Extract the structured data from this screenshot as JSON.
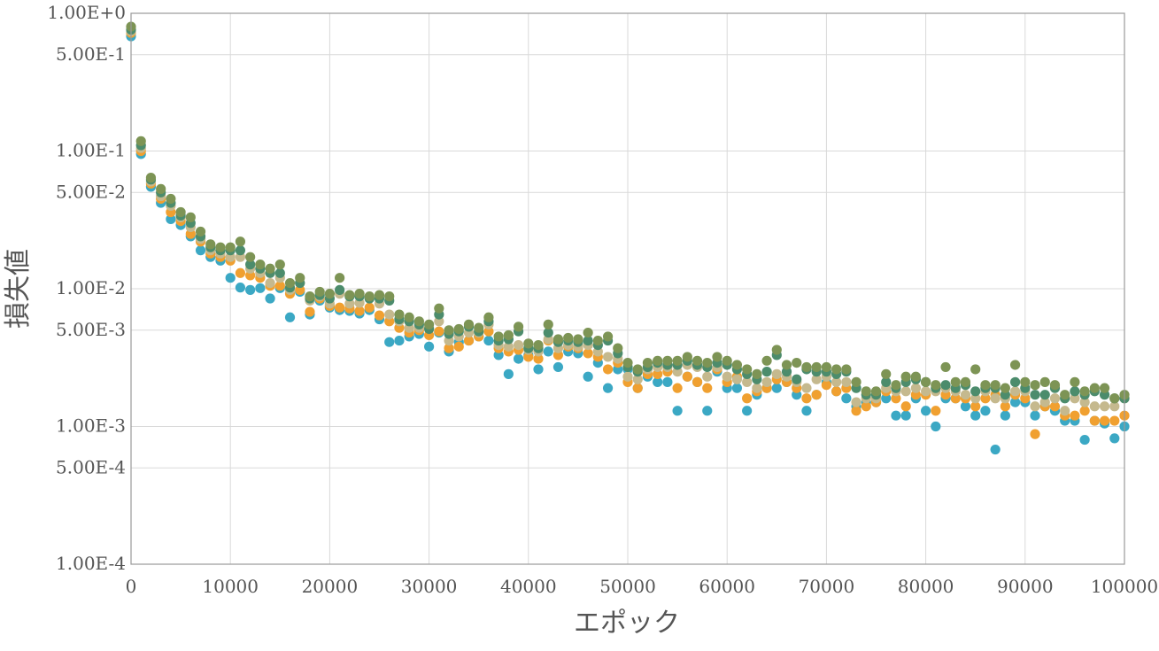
{
  "chart_data": {
    "type": "scatter",
    "title": "",
    "xlabel": "エポック",
    "ylabel": "損失値",
    "xlim": [
      0,
      100000
    ],
    "ylim": [
      0.0001,
      1.0
    ],
    "y_scale": "log",
    "grid": true,
    "legend": "none",
    "x_ticks": [
      {
        "value": 0,
        "label": "0"
      },
      {
        "value": 10000,
        "label": "10000"
      },
      {
        "value": 20000,
        "label": "20000"
      },
      {
        "value": 30000,
        "label": "30000"
      },
      {
        "value": 40000,
        "label": "40000"
      },
      {
        "value": 50000,
        "label": "50000"
      },
      {
        "value": 60000,
        "label": "60000"
      },
      {
        "value": 70000,
        "label": "70000"
      },
      {
        "value": 80000,
        "label": "80000"
      },
      {
        "value": 90000,
        "label": "90000"
      },
      {
        "value": 100000,
        "label": "100000"
      }
    ],
    "y_ticks": [
      {
        "value": 1.0,
        "label": "1.00E+0"
      },
      {
        "value": 0.5,
        "label": "5.00E-1"
      },
      {
        "value": 0.1,
        "label": "1.00E-1"
      },
      {
        "value": 0.05,
        "label": "5.00E-2"
      },
      {
        "value": 0.01,
        "label": "1.00E-2"
      },
      {
        "value": 0.005,
        "label": "5.00E-3"
      },
      {
        "value": 0.001,
        "label": "1.00E-3"
      },
      {
        "value": 0.0005,
        "label": "5.00E-4"
      },
      {
        "value": 0.0001,
        "label": "1.00E-4"
      }
    ],
    "series": [
      {
        "color": "#3ba8c4",
        "x": [
          0,
          1000,
          2000,
          3000,
          4000,
          5000,
          6000,
          7000,
          8000,
          9000,
          10000,
          11000,
          12000,
          13000,
          14000,
          15000,
          16000,
          17000,
          18000,
          19000,
          20000,
          21000,
          22000,
          23000,
          24000,
          25000,
          26000,
          27000,
          28000,
          29000,
          30000,
          31000,
          32000,
          33000,
          34000,
          35000,
          36000,
          37000,
          38000,
          39000,
          40000,
          41000,
          42000,
          43000,
          44000,
          45000,
          46000,
          47000,
          48000,
          49000,
          50000,
          51000,
          52000,
          53000,
          54000,
          55000,
          56000,
          57000,
          58000,
          59000,
          60000,
          61000,
          62000,
          63000,
          64000,
          65000,
          66000,
          67000,
          68000,
          69000,
          70000,
          71000,
          72000,
          73000,
          74000,
          75000,
          76000,
          77000,
          78000,
          79000,
          80000,
          81000,
          82000,
          83000,
          84000,
          85000,
          86000,
          87000,
          88000,
          89000,
          90000,
          91000,
          92000,
          93000,
          94000,
          95000,
          96000,
          97000,
          98000,
          99000,
          100000
        ],
        "values": [
          0.68,
          0.095,
          0.055,
          0.042,
          0.032,
          0.029,
          0.024,
          0.019,
          0.017,
          0.016,
          0.012,
          0.0102,
          0.0098,
          0.0101,
          0.0085,
          0.0101,
          0.0062,
          0.0095,
          0.0065,
          0.0082,
          0.0073,
          0.007,
          0.0069,
          0.0066,
          0.007,
          0.006,
          0.0041,
          0.0042,
          0.0045,
          0.0047,
          0.0038,
          0.0048,
          0.0035,
          0.0041,
          0.0042,
          0.0045,
          0.0042,
          0.0033,
          0.0024,
          0.0031,
          0.0033,
          0.0026,
          0.0035,
          0.0027,
          0.0035,
          0.0034,
          0.0023,
          0.0029,
          0.0019,
          0.0026,
          0.0026,
          0.0019,
          0.0023,
          0.0021,
          0.0021,
          0.0013,
          0.0023,
          0.0021,
          0.0013,
          0.0025,
          0.0019,
          0.0019,
          0.0013,
          0.0017,
          0.0019,
          0.0019,
          0.0021,
          0.0017,
          0.0013,
          0.0017,
          0.0021,
          0.0018,
          0.0016,
          0.0014,
          0.0015,
          0.0015,
          0.0016,
          0.0012,
          0.0012,
          0.0016,
          0.0013,
          0.001,
          0.0016,
          0.0016,
          0.0014,
          0.0012,
          0.0013,
          0.00068,
          0.0012,
          0.0015,
          0.0015,
          0.0012,
          0.0014,
          0.0013,
          0.0011,
          0.0011,
          0.0008,
          0.0011,
          0.00105,
          0.00082,
          0.001
        ]
      },
      {
        "color": "#f0a030",
        "x": [
          0,
          1000,
          2000,
          3000,
          4000,
          5000,
          6000,
          7000,
          8000,
          9000,
          10000,
          11000,
          12000,
          13000,
          14000,
          15000,
          16000,
          17000,
          18000,
          19000,
          20000,
          21000,
          22000,
          23000,
          24000,
          25000,
          26000,
          27000,
          28000,
          29000,
          30000,
          31000,
          32000,
          33000,
          34000,
          35000,
          36000,
          37000,
          38000,
          39000,
          40000,
          41000,
          42000,
          43000,
          44000,
          45000,
          46000,
          47000,
          48000,
          49000,
          50000,
          51000,
          52000,
          53000,
          54000,
          55000,
          56000,
          57000,
          58000,
          59000,
          60000,
          61000,
          62000,
          63000,
          64000,
          65000,
          66000,
          67000,
          68000,
          69000,
          70000,
          71000,
          72000,
          73000,
          74000,
          75000,
          76000,
          77000,
          78000,
          79000,
          80000,
          81000,
          82000,
          83000,
          84000,
          85000,
          86000,
          87000,
          88000,
          89000,
          90000,
          91000,
          92000,
          93000,
          94000,
          95000,
          96000,
          97000,
          98000,
          99000,
          100000
        ],
        "values": [
          0.72,
          0.1,
          0.058,
          0.045,
          0.036,
          0.031,
          0.025,
          0.022,
          0.018,
          0.017,
          0.016,
          0.013,
          0.0125,
          0.012,
          0.0105,
          0.0105,
          0.0092,
          0.0098,
          0.0068,
          0.0085,
          0.0075,
          0.0073,
          0.0072,
          0.0069,
          0.0073,
          0.0064,
          0.0058,
          0.0052,
          0.0048,
          0.005,
          0.0046,
          0.0049,
          0.0037,
          0.0038,
          0.0042,
          0.0045,
          0.0049,
          0.0037,
          0.0035,
          0.0036,
          0.0032,
          0.0031,
          0.0042,
          0.0033,
          0.0038,
          0.0037,
          0.0034,
          0.0032,
          0.0026,
          0.0029,
          0.0021,
          0.0019,
          0.0024,
          0.0024,
          0.0025,
          0.0019,
          0.0023,
          0.0021,
          0.0019,
          0.0026,
          0.0021,
          0.0023,
          0.0016,
          0.0018,
          0.0019,
          0.0022,
          0.0021,
          0.0019,
          0.0016,
          0.0017,
          0.002,
          0.0018,
          0.0019,
          0.0013,
          0.0014,
          0.0015,
          0.0018,
          0.0016,
          0.0014,
          0.0017,
          0.0017,
          0.0013,
          0.0017,
          0.0016,
          0.0016,
          0.0014,
          0.0016,
          0.0017,
          0.0014,
          0.0017,
          0.0016,
          0.00088,
          0.0014,
          0.0014,
          0.0012,
          0.0012,
          0.0013,
          0.0011,
          0.0011,
          0.0011,
          0.0012
        ]
      },
      {
        "color": "#c5b98e",
        "x": [
          0,
          1000,
          2000,
          3000,
          4000,
          5000,
          6000,
          7000,
          8000,
          9000,
          10000,
          11000,
          12000,
          13000,
          14000,
          15000,
          16000,
          17000,
          18000,
          19000,
          20000,
          21000,
          22000,
          23000,
          24000,
          25000,
          26000,
          27000,
          28000,
          29000,
          30000,
          31000,
          32000,
          33000,
          34000,
          35000,
          36000,
          37000,
          38000,
          39000,
          40000,
          41000,
          42000,
          43000,
          44000,
          45000,
          46000,
          47000,
          48000,
          49000,
          50000,
          51000,
          52000,
          53000,
          54000,
          55000,
          56000,
          57000,
          58000,
          59000,
          60000,
          61000,
          62000,
          63000,
          64000,
          65000,
          66000,
          67000,
          68000,
          69000,
          70000,
          71000,
          72000,
          73000,
          74000,
          75000,
          76000,
          77000,
          78000,
          79000,
          80000,
          81000,
          82000,
          83000,
          84000,
          85000,
          86000,
          87000,
          88000,
          89000,
          90000,
          91000,
          92000,
          93000,
          94000,
          95000,
          96000,
          97000,
          98000,
          99000,
          100000
        ],
        "values": [
          0.74,
          0.105,
          0.06,
          0.047,
          0.04,
          0.033,
          0.028,
          0.023,
          0.019,
          0.018,
          0.017,
          0.017,
          0.014,
          0.013,
          0.011,
          0.012,
          0.0098,
          0.011,
          0.0082,
          0.0088,
          0.0078,
          0.0092,
          0.0078,
          0.0079,
          0.0085,
          0.0078,
          0.0065,
          0.0058,
          0.0052,
          0.0052,
          0.0052,
          0.0058,
          0.0042,
          0.0045,
          0.0048,
          0.0048,
          0.0055,
          0.0039,
          0.0038,
          0.0039,
          0.0036,
          0.0035,
          0.0043,
          0.0037,
          0.0039,
          0.0038,
          0.0039,
          0.0035,
          0.0032,
          0.0031,
          0.0023,
          0.0022,
          0.0026,
          0.0027,
          0.0027,
          0.0025,
          0.0028,
          0.0027,
          0.0023,
          0.0027,
          0.0023,
          0.0022,
          0.0021,
          0.0019,
          0.0021,
          0.0024,
          0.0023,
          0.0021,
          0.0019,
          0.0022,
          0.0023,
          0.0021,
          0.0021,
          0.0015,
          0.0016,
          0.0016,
          0.0019,
          0.0018,
          0.0018,
          0.0019,
          0.0018,
          0.0018,
          0.0019,
          0.0018,
          0.0017,
          0.0016,
          0.0018,
          0.0016,
          0.0016,
          0.0018,
          0.0018,
          0.0014,
          0.0015,
          0.0016,
          0.0013,
          0.0016,
          0.0015,
          0.0014,
          0.0014,
          0.0014,
          0.0016
        ]
      },
      {
        "color": "#4c8c6c",
        "x": [
          0,
          1000,
          2000,
          3000,
          4000,
          5000,
          6000,
          7000,
          8000,
          9000,
          10000,
          11000,
          12000,
          13000,
          14000,
          15000,
          16000,
          17000,
          18000,
          19000,
          20000,
          21000,
          22000,
          23000,
          24000,
          25000,
          26000,
          27000,
          28000,
          29000,
          30000,
          31000,
          32000,
          33000,
          34000,
          35000,
          36000,
          37000,
          38000,
          39000,
          40000,
          41000,
          42000,
          43000,
          44000,
          45000,
          46000,
          47000,
          48000,
          49000,
          50000,
          51000,
          52000,
          53000,
          54000,
          55000,
          56000,
          57000,
          58000,
          59000,
          60000,
          61000,
          62000,
          63000,
          64000,
          65000,
          66000,
          67000,
          68000,
          69000,
          70000,
          71000,
          72000,
          73000,
          74000,
          75000,
          76000,
          77000,
          78000,
          79000,
          80000,
          81000,
          82000,
          83000,
          84000,
          85000,
          86000,
          87000,
          88000,
          89000,
          90000,
          91000,
          92000,
          93000,
          94000,
          95000,
          96000,
          97000,
          98000,
          99000,
          100000
        ],
        "values": [
          0.76,
          0.11,
          0.062,
          0.05,
          0.042,
          0.034,
          0.03,
          0.024,
          0.02,
          0.019,
          0.019,
          0.019,
          0.015,
          0.014,
          0.013,
          0.013,
          0.0102,
          0.011,
          0.0085,
          0.009,
          0.0085,
          0.0098,
          0.0088,
          0.0088,
          0.0085,
          0.0085,
          0.0082,
          0.006,
          0.0058,
          0.0055,
          0.0051,
          0.0065,
          0.0047,
          0.0049,
          0.0053,
          0.0049,
          0.0058,
          0.0042,
          0.0043,
          0.0049,
          0.0037,
          0.0037,
          0.0048,
          0.0041,
          0.0042,
          0.0041,
          0.0042,
          0.0039,
          0.0042,
          0.0034,
          0.0027,
          0.0025,
          0.0027,
          0.0029,
          0.0028,
          0.0028,
          0.003,
          0.0028,
          0.0027,
          0.0029,
          0.0028,
          0.0026,
          0.0024,
          0.0022,
          0.0025,
          0.0033,
          0.0025,
          0.0022,
          0.0026,
          0.0025,
          0.0025,
          0.0024,
          0.0025,
          0.0019,
          0.0017,
          0.0017,
          0.0021,
          0.0019,
          0.0021,
          0.0022,
          0.0021,
          0.0019,
          0.002,
          0.0019,
          0.002,
          0.0018,
          0.0019,
          0.0019,
          0.0017,
          0.0021,
          0.0019,
          0.0017,
          0.0017,
          0.0019,
          0.0016,
          0.0018,
          0.0017,
          0.0018,
          0.0017,
          0.0016,
          0.0016
        ]
      },
      {
        "color": "#7d9455",
        "x": [
          0,
          1000,
          2000,
          3000,
          4000,
          5000,
          6000,
          7000,
          8000,
          9000,
          10000,
          11000,
          12000,
          13000,
          14000,
          15000,
          16000,
          17000,
          18000,
          19000,
          20000,
          21000,
          22000,
          23000,
          24000,
          25000,
          26000,
          27000,
          28000,
          29000,
          30000,
          31000,
          32000,
          33000,
          34000,
          35000,
          36000,
          37000,
          38000,
          39000,
          40000,
          41000,
          42000,
          43000,
          44000,
          45000,
          46000,
          47000,
          48000,
          49000,
          50000,
          51000,
          52000,
          53000,
          54000,
          55000,
          56000,
          57000,
          58000,
          59000,
          60000,
          61000,
          62000,
          63000,
          64000,
          65000,
          66000,
          67000,
          68000,
          69000,
          70000,
          71000,
          72000,
          73000,
          74000,
          75000,
          76000,
          77000,
          78000,
          79000,
          80000,
          81000,
          82000,
          83000,
          84000,
          85000,
          86000,
          87000,
          88000,
          89000,
          90000,
          91000,
          92000,
          93000,
          94000,
          95000,
          96000,
          97000,
          98000,
          99000,
          100000
        ],
        "values": [
          0.8,
          0.118,
          0.064,
          0.053,
          0.045,
          0.036,
          0.033,
          0.026,
          0.021,
          0.02,
          0.02,
          0.022,
          0.017,
          0.015,
          0.014,
          0.015,
          0.011,
          0.012,
          0.0088,
          0.0095,
          0.0092,
          0.012,
          0.009,
          0.0092,
          0.0088,
          0.009,
          0.0088,
          0.0065,
          0.0062,
          0.0058,
          0.0055,
          0.0072,
          0.005,
          0.0051,
          0.0055,
          0.0052,
          0.0062,
          0.0045,
          0.0046,
          0.0053,
          0.004,
          0.0039,
          0.0055,
          0.0043,
          0.0044,
          0.0043,
          0.0048,
          0.0042,
          0.0045,
          0.0037,
          0.0029,
          0.0026,
          0.0029,
          0.003,
          0.003,
          0.003,
          0.0032,
          0.003,
          0.0029,
          0.0032,
          0.003,
          0.0028,
          0.0026,
          0.0024,
          0.003,
          0.0036,
          0.0028,
          0.0029,
          0.0027,
          0.0027,
          0.0027,
          0.0026,
          0.0026,
          0.0021,
          0.0018,
          0.0018,
          0.0024,
          0.002,
          0.0023,
          0.0023,
          0.0021,
          0.002,
          0.0027,
          0.0021,
          0.0021,
          0.0026,
          0.002,
          0.002,
          0.0019,
          0.0028,
          0.0021,
          0.002,
          0.0021,
          0.002,
          0.0017,
          0.0021,
          0.0018,
          0.0019,
          0.0019,
          0.0016,
          0.0017
        ]
      }
    ]
  }
}
